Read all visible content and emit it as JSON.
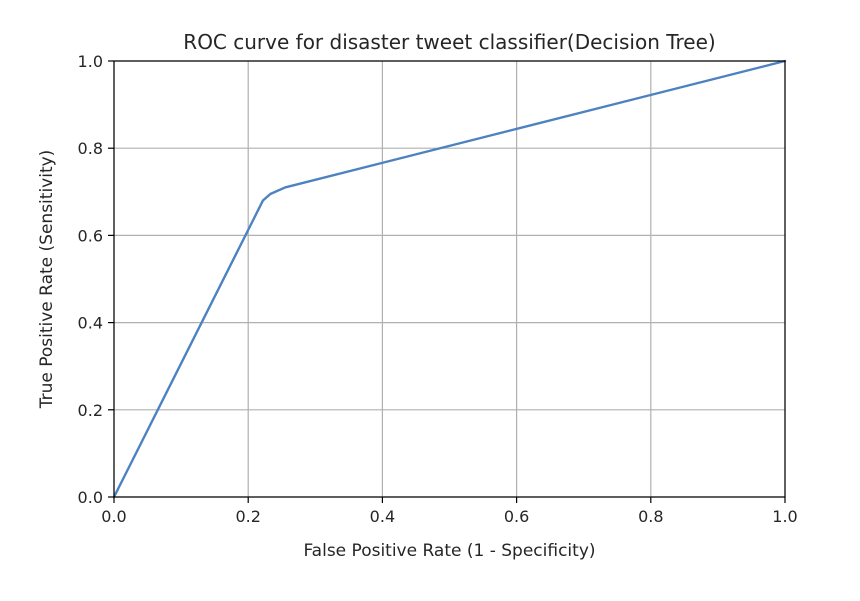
{
  "chart_data": {
    "type": "line",
    "title": "ROC curve for disaster tweet classifier(Decision Tree)",
    "xlabel": "False Positive Rate (1 - Specificity)",
    "ylabel": "True Positive Rate (Sensitivity)",
    "xlim": [
      0.0,
      1.0
    ],
    "ylim": [
      0.0,
      1.0
    ],
    "xticks": [
      "0.0",
      "0.2",
      "0.4",
      "0.6",
      "0.8",
      "1.0"
    ],
    "yticks": [
      "0.0",
      "0.2",
      "0.4",
      "0.6",
      "0.8",
      "1.0"
    ],
    "grid": true,
    "series": [
      {
        "color": "#4c82c1",
        "x": [
          0.0,
          0.222,
          0.233,
          0.255,
          1.0
        ],
        "y": [
          0.0,
          0.68,
          0.695,
          0.71,
          1.0
        ]
      }
    ]
  }
}
